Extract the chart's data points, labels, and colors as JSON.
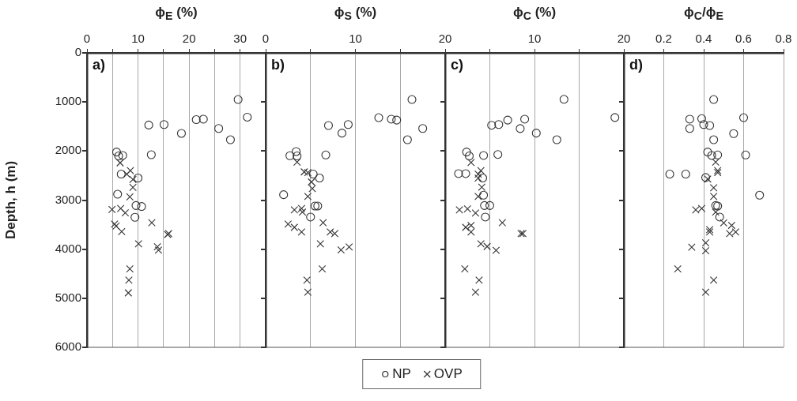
{
  "chart_data": [
    {
      "type": "scatter",
      "xlabel": "ϕ$_{E}$ (%)",
      "ylabel": "Depth, h (m)",
      "annotations": [
        "a)"
      ],
      "xlim": [
        0,
        35
      ],
      "xticks": [
        0,
        {
          "value": 5,
          "label": null
        },
        10,
        {
          "value": 15,
          "label": null
        },
        20,
        {
          "value": 25,
          "label": null
        },
        30
      ],
      "ylim": [
        6000,
        0
      ],
      "yticks": [
        0,
        1000,
        2000,
        3000,
        4000,
        5000,
        6000
      ],
      "grid": "x",
      "legend": "bottom",
      "series": [
        {
          "name": "NP",
          "color": "#333333",
          "marker": "circle",
          "x": [
            29.6,
            31.4,
            22.8,
            21.4,
            25.8,
            28.1,
            18.5,
            15.1,
            12.1,
            12.6,
            5.8,
            6.2,
            7.0,
            6.7,
            10.0,
            6.0,
            9.6,
            10.7,
            9.4
          ],
          "values": [
            950,
            1310,
            1350,
            1360,
            1540,
            1770,
            1640,
            1460,
            1470,
            2075,
            2020,
            2100,
            2090,
            2470,
            2550,
            2880,
            3110,
            3130,
            3350
          ]
        },
        {
          "name": "OVP",
          "color": "#333333",
          "marker": "cross",
          "x": [
            6.5,
            8.5,
            7.8,
            9.0,
            9.0,
            8.4,
            4.9,
            6.6,
            7.5,
            5.4,
            5.7,
            6.8,
            12.7,
            10.1,
            13.8,
            14.0,
            16.0,
            15.8,
            8.4,
            8.2,
            8.1
          ],
          "values": [
            2240,
            2400,
            2470,
            2580,
            2740,
            2935,
            3190,
            3170,
            3260,
            3490,
            3530,
            3640,
            3460,
            3890,
            3950,
            4020,
            3680,
            3700,
            4400,
            4630,
            4890
          ]
        }
      ]
    },
    {
      "type": "scatter",
      "xlabel": "ϕ$_{S}$ (%)",
      "annotations": [
        "b)"
      ],
      "xlim": [
        0,
        20
      ],
      "xticks": [
        0,
        {
          "value": 5,
          "label": null
        },
        10,
        {
          "value": 15,
          "label": null
        },
        20
      ],
      "ylim": [
        6000,
        0
      ],
      "yticks": [
        0,
        1000,
        2000,
        3000,
        4000,
        5000,
        6000
      ],
      "grid": "x",
      "tick_labels": "x",
      "series": [
        {
          "name": "NP",
          "color": "#333333",
          "marker": "circle",
          "x": [
            16.3,
            12.6,
            14.0,
            14.6,
            17.5,
            15.8,
            8.5,
            9.2,
            7.0,
            6.7,
            3.4,
            2.7,
            3.5,
            5.3,
            6.0,
            2.0,
            5.5,
            5.8,
            5.0
          ],
          "values": [
            950,
            1320,
            1350,
            1370,
            1540,
            1770,
            1635,
            1460,
            1480,
            2080,
            2010,
            2095,
            2100,
            2470,
            2550,
            2890,
            3120,
            3120,
            3345
          ]
        },
        {
          "name": "OVP",
          "color": "#333333",
          "marker": "cross",
          "x": [
            3.5,
            4.3,
            4.7,
            5.1,
            5.2,
            4.7,
            3.2,
            4.0,
            4.1,
            2.5,
            3.2,
            4.0,
            6.4,
            7.2,
            7.7,
            6.1,
            8.4,
            9.3,
            6.3,
            4.6,
            4.7
          ],
          "values": [
            2225,
            2425,
            2440,
            2630,
            2765,
            2925,
            3200,
            3170,
            3245,
            3490,
            3555,
            3650,
            3460,
            3650,
            3680,
            3890,
            4015,
            3955,
            4400,
            4630,
            4875
          ]
        }
      ]
    },
    {
      "type": "scatter",
      "xlabel": "ϕ$_{C}$ (%)",
      "annotations": [
        "c)"
      ],
      "xlim": [
        0,
        20
      ],
      "xticks": [
        {
          "value": 0,
          "label": null
        },
        {
          "value": 5,
          "label": null
        },
        10,
        {
          "value": 15,
          "label": null
        },
        20
      ],
      "ylim": [
        6000,
        0
      ],
      "yticks": [
        0,
        1000,
        2000,
        3000,
        4000,
        5000,
        6000
      ],
      "grid": "x",
      "tick_labels": "x",
      "series": [
        {
          "name": "NP",
          "color": "#333333",
          "marker": "circle",
          "x": [
            13.3,
            19.0,
            8.9,
            7.0,
            8.4,
            6.0,
            5.2,
            10.2,
            12.5,
            2.4,
            2.7,
            4.3,
            5.9,
            1.5,
            2.3,
            4.2,
            4.3,
            4.4,
            5.0,
            4.5
          ],
          "values": [
            946,
            1317,
            1350,
            1370,
            1543,
            1460,
            1475,
            1635,
            1770,
            2020,
            2100,
            2090,
            2070,
            2460,
            2460,
            2550,
            2900,
            3110,
            3110,
            3345
          ]
        },
        {
          "name": "OVP",
          "color": "#333333",
          "marker": "cross",
          "x": [
            2.9,
            4.0,
            3.7,
            3.7,
            4.1,
            3.7,
            1.6,
            2.5,
            3.4,
            2.3,
            2.9,
            2.9,
            6.4,
            8.7,
            8.5,
            4.0,
            4.7,
            5.7,
            2.2,
            3.8,
            3.4
          ],
          "values": [
            2235,
            2400,
            2470,
            2550,
            2735,
            2925,
            3200,
            3180,
            3265,
            3555,
            3515,
            3650,
            3460,
            3680,
            3680,
            3890,
            3945,
            4025,
            4400,
            4630,
            4875
          ]
        }
      ]
    },
    {
      "type": "scatter",
      "xlabel": "ϕ$_{C}$/ϕ$_{E}$",
      "annotations": [
        "d)"
      ],
      "xlim": [
        0,
        0.8
      ],
      "xticks": [
        {
          "value": 0,
          "label": null
        },
        0.2,
        0.4,
        0.6,
        0.8
      ],
      "ylim": [
        6000,
        0
      ],
      "yticks": [
        0,
        1000,
        2000,
        3000,
        4000,
        5000,
        6000
      ],
      "grid": "x",
      "tick_labels": "x",
      "series": [
        {
          "name": "NP",
          "color": "#333333",
          "marker": "circle",
          "x": [
            0.45,
            0.33,
            0.33,
            0.39,
            0.4,
            0.43,
            0.6,
            0.55,
            0.45,
            0.42,
            0.44,
            0.47,
            0.61,
            0.23,
            0.31,
            0.41,
            0.68,
            0.46,
            0.47,
            0.48
          ],
          "values": [
            950,
            1350,
            1540,
            1340,
            1460,
            1480,
            1320,
            1645,
            1770,
            2020,
            2090,
            2080,
            2080,
            2470,
            2470,
            2540,
            2900,
            3110,
            3120,
            3345
          ]
        },
        {
          "name": "OVP",
          "color": "#333333",
          "marker": "cross",
          "x": [
            0.46,
            0.47,
            0.47,
            0.42,
            0.45,
            0.45,
            0.36,
            0.39,
            0.46,
            0.5,
            0.54,
            0.53,
            0.56,
            0.43,
            0.43,
            0.34,
            0.41,
            0.41,
            0.27,
            0.45,
            0.41
          ],
          "values": [
            2225,
            2400,
            2440,
            2570,
            2750,
            2925,
            3200,
            3170,
            3245,
            3465,
            3515,
            3680,
            3650,
            3600,
            3650,
            3960,
            3870,
            4030,
            4400,
            4630,
            4875
          ]
        }
      ]
    }
  ]
}
